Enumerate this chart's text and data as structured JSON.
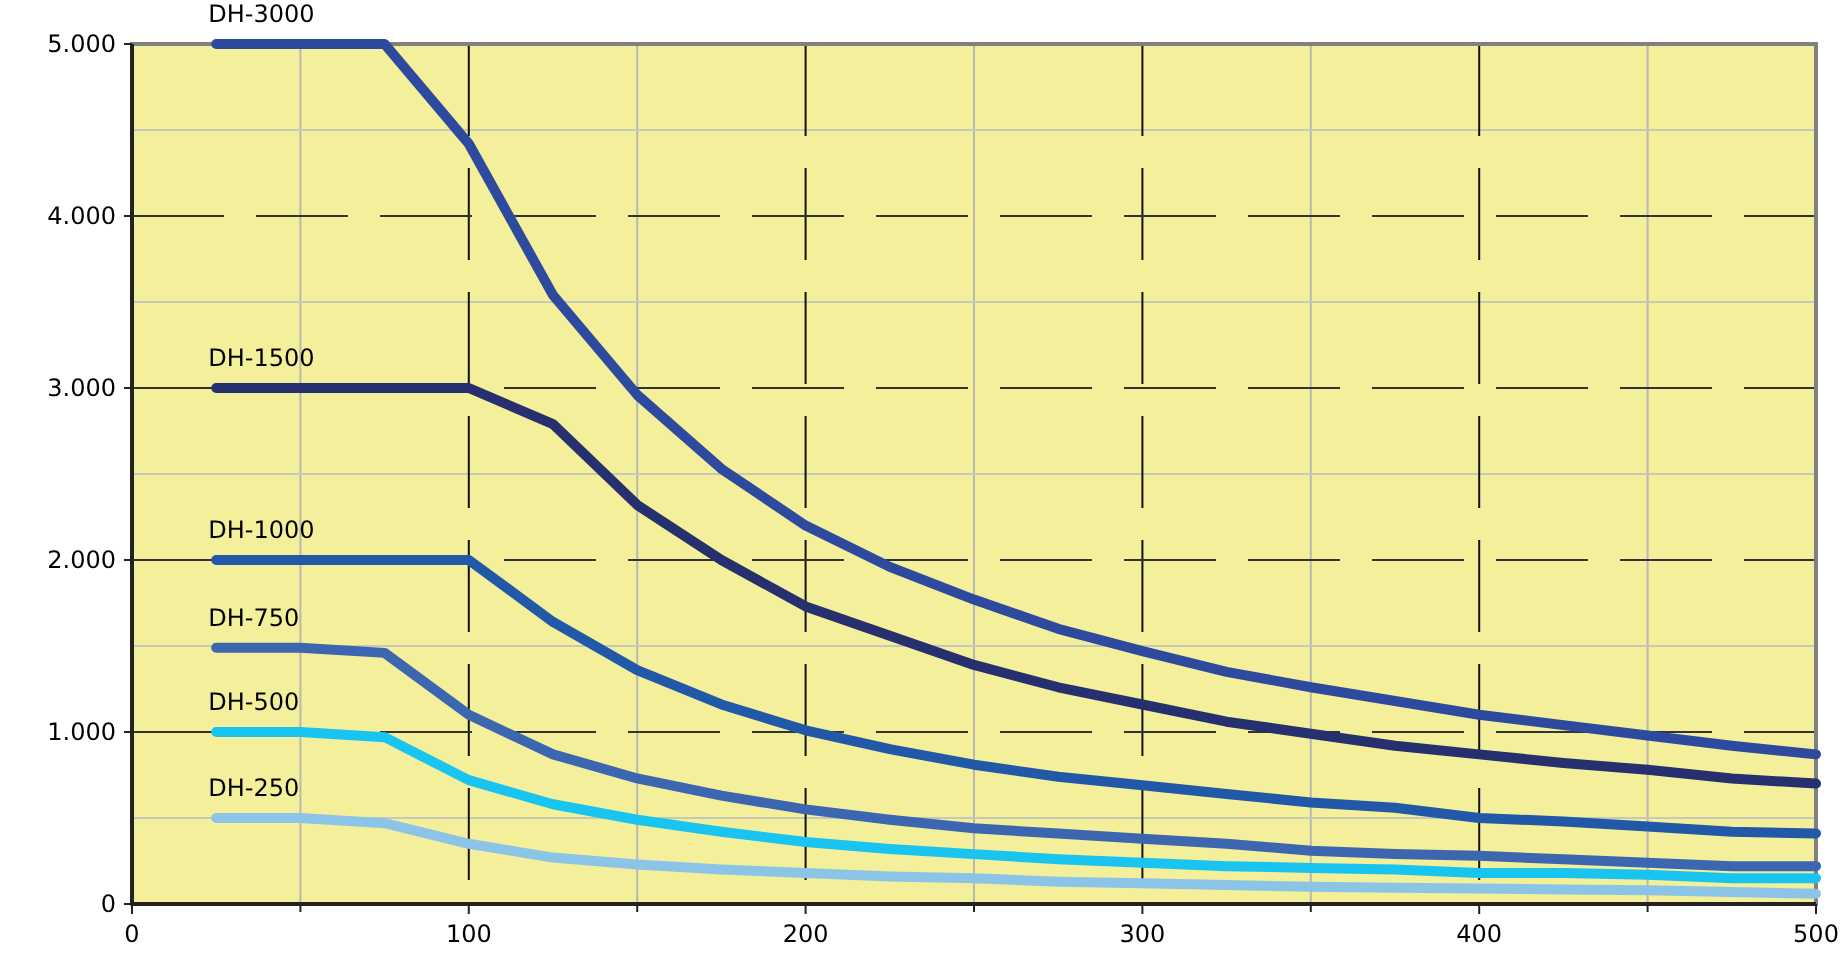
{
  "chart_data": {
    "type": "line",
    "x": [
      25,
      50,
      75,
      100,
      125,
      150,
      175,
      200,
      225,
      250,
      275,
      300,
      325,
      350,
      375,
      400,
      425,
      450,
      475,
      500
    ],
    "xlim": [
      0,
      500
    ],
    "xticks": [
      0,
      100,
      200,
      300,
      400,
      500
    ],
    "ylim": [
      0,
      5000
    ],
    "yticks": [
      {
        "value": 0,
        "label": "0"
      },
      {
        "value": 1000,
        "label": "1.000"
      },
      {
        "value": 2000,
        "label": "2.000"
      },
      {
        "value": 3000,
        "label": "3.000"
      },
      {
        "value": 4000,
        "label": "4.000"
      },
      {
        "value": 5000,
        "label": "5.000"
      }
    ],
    "grid": true,
    "marker": "none",
    "line_style": "solid",
    "series": [
      {
        "name": "DH-3000",
        "color": "#2e4a9e",
        "values": [
          5000,
          5000,
          5000,
          4420,
          3540,
          2960,
          2530,
          2200,
          1960,
          1770,
          1600,
          1470,
          1350,
          1260,
          1180,
          1100,
          1040,
          980,
          920,
          870
        ]
      },
      {
        "name": "DH-1500",
        "color": "#26306e",
        "values": [
          3000,
          3000,
          3000,
          3000,
          2790,
          2320,
          2000,
          1730,
          1560,
          1390,
          1260,
          1160,
          1060,
          990,
          920,
          870,
          820,
          780,
          730,
          700
        ]
      },
      {
        "name": "DH-1000",
        "color": "#2159a8",
        "values": [
          2000,
          2000,
          2000,
          2000,
          1640,
          1360,
          1160,
          1010,
          900,
          810,
          740,
          690,
          640,
          590,
          560,
          500,
          480,
          450,
          420,
          410
        ]
      },
      {
        "name": "DH-750",
        "color": "#3d66b0",
        "values": [
          1490,
          1490,
          1460,
          1100,
          870,
          730,
          630,
          550,
          490,
          440,
          410,
          380,
          350,
          310,
          290,
          280,
          260,
          240,
          220,
          220
        ]
      },
      {
        "name": "DH-500",
        "color": "#1ac4f0",
        "values": [
          1000,
          1000,
          970,
          720,
          580,
          490,
          420,
          360,
          320,
          290,
          260,
          240,
          220,
          210,
          200,
          180,
          180,
          170,
          150,
          150
        ]
      },
      {
        "name": "DH-250",
        "color": "#8cc4e8",
        "values": [
          500,
          500,
          470,
          350,
          270,
          230,
          200,
          180,
          160,
          150,
          130,
          120,
          110,
          100,
          95,
          90,
          85,
          80,
          70,
          60
        ]
      }
    ]
  }
}
